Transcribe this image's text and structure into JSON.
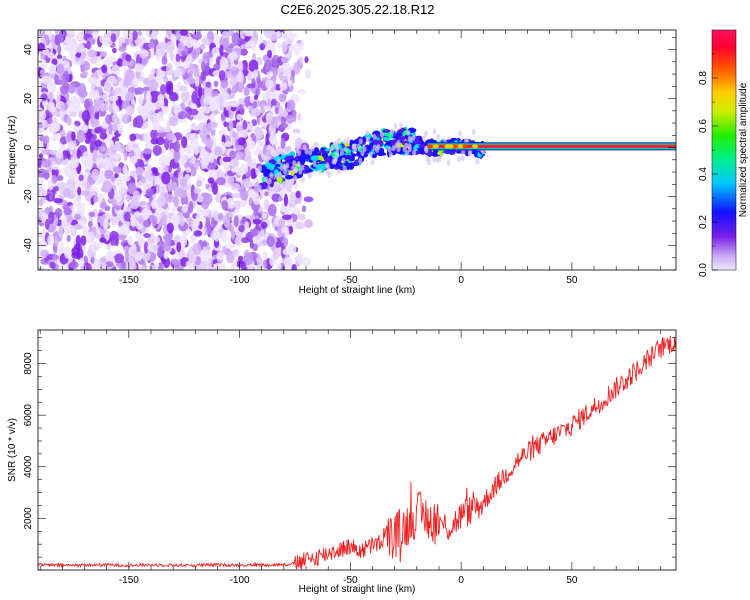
{
  "title": "C2E6.2025.305.22.18.R12",
  "colorbar": {
    "label": "Normalized spectral amplitude",
    "ticks": [
      "0.0",
      "0.2",
      "0.4",
      "0.6",
      "0.8"
    ],
    "tick_values": [
      0.0,
      0.2,
      0.4,
      0.6,
      0.8
    ]
  },
  "chart_data": [
    {
      "type": "heatmap",
      "title": "",
      "xlabel": "Height of straight line (km)",
      "ylabel": "Frequency (Hz)",
      "xlim": [
        -191,
        97
      ],
      "ylim": [
        -50,
        48
      ],
      "x_ticks": [
        "-150",
        "-100",
        "-50",
        "0",
        "50"
      ],
      "x_tick_values": [
        -150,
        -100,
        -50,
        0,
        50
      ],
      "y_ticks": [
        "-40",
        "-20",
        "0",
        "20",
        "40"
      ],
      "y_tick_values": [
        -40,
        -20,
        0,
        20,
        40
      ],
      "colorscale": "rainbow",
      "zlim": [
        0,
        1
      ],
      "features": [
        {
          "name": "noise",
          "x_range": [
            -191,
            -70
          ],
          "y_range": [
            -50,
            48
          ],
          "amplitude": 0.05
        },
        {
          "name": "drifting-signal",
          "x": [
            -90,
            -70,
            -50,
            -35,
            -25,
            -15,
            0,
            10
          ],
          "y": [
            -11,
            -6,
            -3,
            2,
            3,
            0,
            0,
            -1
          ],
          "amplitude": 0.35
        },
        {
          "name": "carrier-line",
          "x_range": [
            -15,
            97
          ],
          "y": 0.5,
          "amplitude": 1.0
        }
      ]
    },
    {
      "type": "line",
      "title": "",
      "xlabel": "Height of straight line (km)",
      "ylabel": "SNR (10 * v/v)",
      "xlim": [
        -191,
        97
      ],
      "ylim": [
        0,
        9300
      ],
      "x_ticks": [
        "-150",
        "-100",
        "-50",
        "0",
        "50"
      ],
      "x_tick_values": [
        -150,
        -100,
        -50,
        0,
        50
      ],
      "y_ticks": [
        "2000",
        "4000",
        "6000",
        "8000"
      ],
      "y_tick_values": [
        2000,
        4000,
        6000,
        8000
      ],
      "color": "#ee2222",
      "series": [
        {
          "x": [
            -191,
            -180,
            -170,
            -160,
            -150,
            -140,
            -130,
            -120,
            -110,
            -100,
            -90,
            -80,
            -75,
            -70,
            -65,
            -60,
            -55,
            -50,
            -45,
            -40,
            -35,
            -30,
            -25,
            -20,
            -15,
            -10,
            -5,
            0,
            5,
            10,
            15,
            20,
            25,
            30,
            40,
            50,
            60,
            70,
            80,
            90,
            97
          ],
          "values": [
            200,
            180,
            190,
            200,
            180,
            200,
            190,
            180,
            200,
            190,
            200,
            210,
            250,
            350,
            500,
            650,
            800,
            900,
            750,
            950,
            1100,
            1350,
            1700,
            2200,
            2000,
            1800,
            1650,
            2100,
            2350,
            2600,
            3200,
            3700,
            4200,
            4550,
            5100,
            5600,
            6300,
            7050,
            7800,
            8600,
            8900
          ]
        }
      ]
    }
  ]
}
